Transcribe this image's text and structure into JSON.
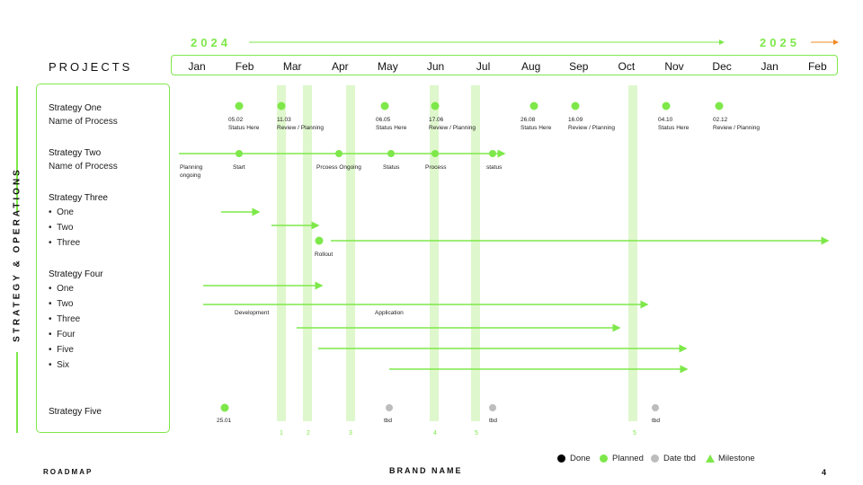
{
  "header": {
    "year_start": "2024",
    "year_end": "2025",
    "projects_label": "PROJECTS"
  },
  "months": [
    "Jan",
    "Feb",
    "Mar",
    "Apr",
    "May",
    "Jun",
    "Jul",
    "Aug",
    "Sep",
    "Oct",
    "Nov",
    "Dec",
    "Jan",
    "Feb"
  ],
  "side_label": "STRATEGY & OPERATIONS",
  "strategies": [
    {
      "title": "Strategy One",
      "sub": "Name of Process"
    },
    {
      "title": "Strategy Two",
      "sub": "Name of Process"
    },
    {
      "title": "Strategy Three",
      "items": [
        "One",
        "Two",
        "Three"
      ]
    },
    {
      "title": "Strategy Four",
      "items": [
        "One",
        "Two",
        "Three",
        "Four",
        "Five",
        "Six"
      ]
    },
    {
      "title": "Strategy Five"
    }
  ],
  "column_numbers": [
    "1",
    "2",
    "3",
    "4",
    "5",
    "5"
  ],
  "strategy_one_milestones": [
    {
      "date": "05.02",
      "text": "Status Here"
    },
    {
      "date": "11.03",
      "text": "Review / Planning"
    },
    {
      "date": "06.05",
      "text": "Status Here"
    },
    {
      "date": "17.06",
      "text": "Review / Planning"
    },
    {
      "date": "26.08",
      "text": "Status Here"
    },
    {
      "date": "16.09",
      "text": "Review / Planning"
    },
    {
      "date": "04.10",
      "text": "Status Here"
    },
    {
      "date": "02.12",
      "text": "Review / Planning"
    }
  ],
  "strategy_two_labels": [
    "Planning",
    "ongoing",
    "Start",
    "Prcoess Ongoing",
    "Status",
    "Process",
    "status"
  ],
  "strategy_three_labels": [
    "Rollout"
  ],
  "strategy_four_labels": [
    "Development",
    "Application"
  ],
  "strategy_five_labels": [
    "25.01",
    "tbd",
    "tbd",
    "tbd"
  ],
  "footer": {
    "left": "ROADMAP",
    "center": "BRAND NAME",
    "page": "4"
  },
  "legend": {
    "done": "Done",
    "planned": "Planned",
    "date_tbd": "Date tbd",
    "milestone": "Milestone"
  },
  "colors": {
    "accent": "#7ee84a",
    "accent_light": "#dff7cc",
    "done": "#000000",
    "tbd": "#bdbdbd",
    "orange": "#f08a24"
  }
}
